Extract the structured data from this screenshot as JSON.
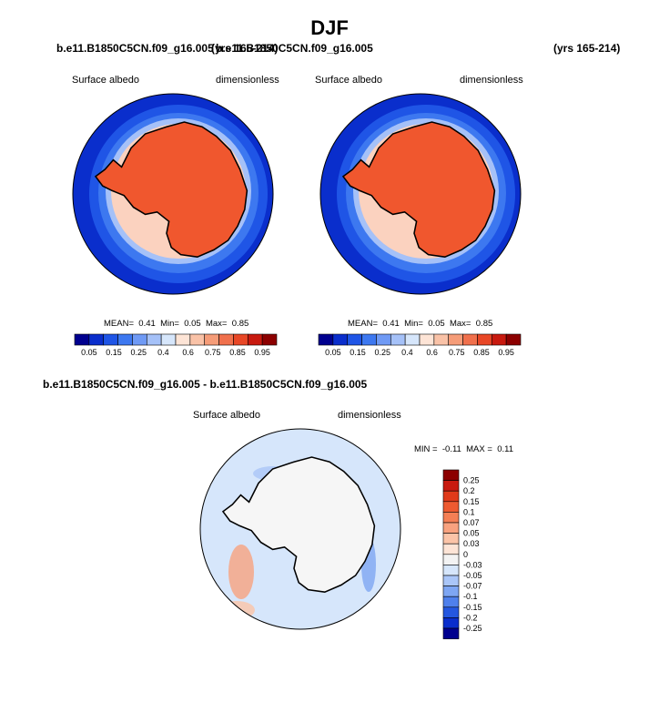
{
  "title": "DJF",
  "top_left": {
    "case_name": "b.e11.B1850C5CN.f09_g16.005",
    "years": "(yrs 165-214)",
    "variable": "Surface albedo",
    "units": "dimensionless",
    "stats": {
      "mean_label": "MEAN=",
      "mean": "0.41",
      "min_label": "Min=",
      "min": "0.05",
      "max_label": "Max=",
      "max": "0.85"
    }
  },
  "top_right": {
    "case_name": "b.e11.B1850C5CN.f09_g16.005",
    "years": "(yrs 165-214)",
    "variable": "Surface albedo",
    "units": "dimensionless",
    "stats": {
      "mean_label": "MEAN=",
      "mean": "0.41",
      "min_label": "Min=",
      "min": "0.05",
      "max_label": "Max=",
      "max": "0.85"
    }
  },
  "diff": {
    "title": "b.e11.B1850C5CN.f09_g16.005 - b.e11.B1850C5CN.f09_g16.005",
    "variable": "Surface albedo",
    "units": "dimensionless",
    "stats": {
      "min_label": "MIN =",
      "min": "-0.11",
      "max_label": "MAX =",
      "max": "0.11"
    }
  },
  "chart_data": [
    {
      "type": "heatmap",
      "projection": "south-polar-stereographic",
      "variable": "Surface albedo",
      "units": "dimensionless",
      "colorbar": {
        "orientation": "horizontal",
        "levels": [
          "0.05",
          "0.15",
          "0.25",
          "0.4",
          "0.6",
          "0.75",
          "0.85",
          "0.95"
        ],
        "colors": [
          "#00008f",
          "#0a2ecc",
          "#1f55e6",
          "#3d78f0",
          "#6f9af5",
          "#a5c1f8",
          "#d6e6fb",
          "#fde4d6",
          "#f9c2a7",
          "#f59c78",
          "#f0704c",
          "#e84726",
          "#c81a0f",
          "#8c0000"
        ]
      },
      "stats": {
        "mean": 0.41,
        "min": 0.05,
        "max": 0.85
      }
    },
    {
      "type": "heatmap",
      "projection": "south-polar-stereographic",
      "variable": "Surface albedo",
      "units": "dimensionless",
      "colorbar": {
        "orientation": "horizontal",
        "levels": [
          "0.05",
          "0.15",
          "0.25",
          "0.4",
          "0.6",
          "0.75",
          "0.85",
          "0.95"
        ],
        "colors": [
          "#00008f",
          "#0a2ecc",
          "#1f55e6",
          "#3d78f0",
          "#6f9af5",
          "#a5c1f8",
          "#d6e6fb",
          "#fde4d6",
          "#f9c2a7",
          "#f59c78",
          "#f0704c",
          "#e84726",
          "#c81a0f",
          "#8c0000"
        ]
      },
      "stats": {
        "mean": 0.41,
        "min": 0.05,
        "max": 0.85
      }
    },
    {
      "type": "heatmap",
      "projection": "south-polar-stereographic",
      "variable": "Surface albedo",
      "units": "dimensionless",
      "colorbar": {
        "orientation": "vertical",
        "levels": [
          "0.25",
          "0.2",
          "0.15",
          "0.1",
          "0.07",
          "0.05",
          "0.03",
          "0",
          "-0.03",
          "-0.05",
          "-0.07",
          "-0.1",
          "-0.15",
          "-0.2",
          "-0.25"
        ],
        "colors": [
          "#8c0000",
          "#c81a0f",
          "#e03a1a",
          "#ee5a30",
          "#f47f55",
          "#f8a27f",
          "#fbc4a8",
          "#fde4d6",
          "#f3f3f3",
          "#d6e6fb",
          "#aac6f8",
          "#7ea6f3",
          "#4f80ec",
          "#2457e0",
          "#0a2ecc",
          "#00008f"
        ]
      },
      "stats": {
        "min": -0.11,
        "max": 0.11
      }
    }
  ]
}
